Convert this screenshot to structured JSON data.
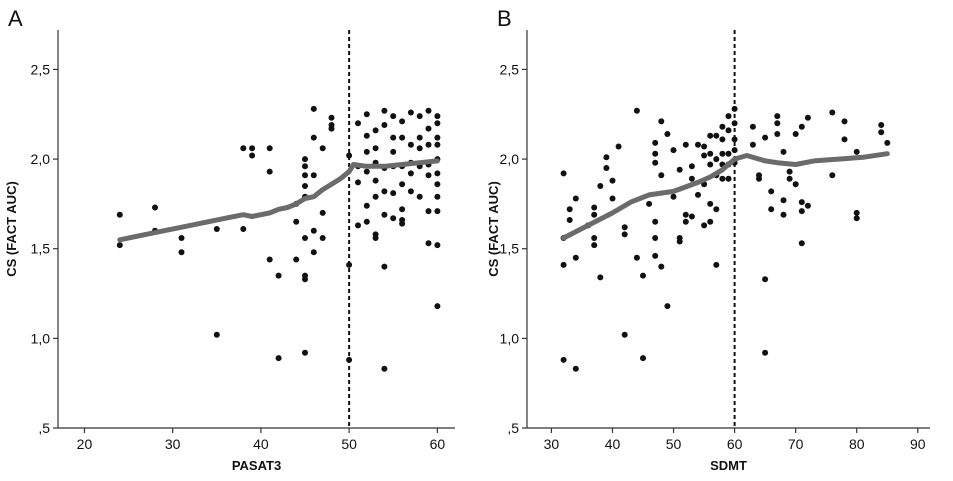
{
  "chart_data": [
    {
      "type": "scatter",
      "panel": "A",
      "xlabel": "PASAT3",
      "ylabel": "CS (FACT AUC)",
      "xlim": [
        17,
        62
      ],
      "ylim": [
        0.5,
        2.72
      ],
      "xticks": [
        20,
        30,
        40,
        50,
        60
      ],
      "yticks": [
        0.5,
        1.0,
        1.5,
        2.0,
        2.5
      ],
      "yticklabels": [
        ",5",
        "1,0",
        "1,5",
        "2,0",
        "2,5"
      ],
      "cutoff_x": 50,
      "points": [
        [
          24,
          1.69
        ],
        [
          24,
          1.52
        ],
        [
          28,
          1.73
        ],
        [
          28,
          1.6
        ],
        [
          31,
          1.56
        ],
        [
          31,
          1.48
        ],
        [
          35,
          1.61
        ],
        [
          35,
          1.02
        ],
        [
          38,
          2.06
        ],
        [
          38,
          1.61
        ],
        [
          39,
          2.06
        ],
        [
          39,
          2.02
        ],
        [
          41,
          2.06
        ],
        [
          41,
          1.93
        ],
        [
          41,
          1.44
        ],
        [
          42,
          1.35
        ],
        [
          42,
          0.89
        ],
        [
          44,
          1.75
        ],
        [
          44,
          1.65
        ],
        [
          44,
          1.44
        ],
        [
          45,
          2.0
        ],
        [
          45,
          1.96
        ],
        [
          45,
          1.91
        ],
        [
          45,
          1.85
        ],
        [
          45,
          1.79
        ],
        [
          45,
          1.56
        ],
        [
          45,
          1.35
        ],
        [
          45,
          1.33
        ],
        [
          45,
          0.92
        ],
        [
          46,
          2.28
        ],
        [
          46,
          2.12
        ],
        [
          46,
          1.91
        ],
        [
          46,
          1.6
        ],
        [
          46,
          1.48
        ],
        [
          47,
          2.06
        ],
        [
          47,
          1.7
        ],
        [
          47,
          1.56
        ],
        [
          48,
          2.23
        ],
        [
          48,
          2.19
        ],
        [
          48,
          2.17
        ],
        [
          50,
          1.41
        ],
        [
          50,
          0.88
        ],
        [
          50,
          2.02
        ],
        [
          51,
          2.2
        ],
        [
          51,
          1.96
        ],
        [
          51,
          1.87
        ],
        [
          51,
          1.63
        ],
        [
          52,
          2.25
        ],
        [
          52,
          2.13
        ],
        [
          52,
          2.04
        ],
        [
          52,
          1.93
        ],
        [
          52,
          1.74
        ],
        [
          52,
          1.65
        ],
        [
          53,
          2.16
        ],
        [
          53,
          2.06
        ],
        [
          53,
          1.98
        ],
        [
          53,
          1.88
        ],
        [
          53,
          1.79
        ],
        [
          53,
          1.58
        ],
        [
          53,
          1.56
        ],
        [
          54,
          2.27
        ],
        [
          54,
          2.19
        ],
        [
          54,
          1.95
        ],
        [
          54,
          1.82
        ],
        [
          54,
          1.69
        ],
        [
          54,
          1.4
        ],
        [
          54,
          0.83
        ],
        [
          55,
          2.24
        ],
        [
          55,
          2.12
        ],
        [
          55,
          2.04
        ],
        [
          55,
          1.96
        ],
        [
          55,
          1.81
        ],
        [
          55,
          1.67
        ],
        [
          56,
          2.21
        ],
        [
          56,
          2.12
        ],
        [
          56,
          1.96
        ],
        [
          56,
          1.86
        ],
        [
          56,
          1.72
        ],
        [
          56,
          1.66
        ],
        [
          56,
          1.64
        ],
        [
          57,
          2.26
        ],
        [
          57,
          2.08
        ],
        [
          57,
          1.98
        ],
        [
          57,
          1.92
        ],
        [
          57,
          1.82
        ],
        [
          58,
          2.24
        ],
        [
          58,
          2.12
        ],
        [
          58,
          2.06
        ],
        [
          58,
          1.96
        ],
        [
          58,
          1.79
        ],
        [
          59,
          2.27
        ],
        [
          59,
          2.17
        ],
        [
          59,
          2.08
        ],
        [
          59,
          1.97
        ],
        [
          59,
          1.91
        ],
        [
          59,
          1.71
        ],
        [
          59,
          1.53
        ],
        [
          60,
          2.24
        ],
        [
          60,
          2.2
        ],
        [
          60,
          2.12
        ],
        [
          60,
          2.08
        ],
        [
          60,
          2.0
        ],
        [
          60,
          1.92
        ],
        [
          60,
          1.86
        ],
        [
          60,
          1.79
        ],
        [
          60,
          1.71
        ],
        [
          60,
          1.52
        ],
        [
          60,
          1.18
        ]
      ],
      "trend": [
        [
          24,
          1.55
        ],
        [
          28,
          1.59
        ],
        [
          32,
          1.63
        ],
        [
          36,
          1.67
        ],
        [
          38,
          1.69
        ],
        [
          39,
          1.68
        ],
        [
          41,
          1.7
        ],
        [
          42,
          1.72
        ],
        [
          43,
          1.73
        ],
        [
          44,
          1.75
        ],
        [
          45,
          1.78
        ],
        [
          46,
          1.79
        ],
        [
          47,
          1.83
        ],
        [
          48,
          1.86
        ],
        [
          49,
          1.89
        ],
        [
          50,
          1.93
        ],
        [
          50.5,
          1.97
        ],
        [
          52,
          1.96
        ],
        [
          54,
          1.96
        ],
        [
          56,
          1.97
        ],
        [
          58,
          1.98
        ],
        [
          60,
          1.99
        ]
      ]
    },
    {
      "type": "scatter",
      "panel": "B",
      "xlabel": "SDMT",
      "ylabel": "CS (FACT AUC)",
      "xlim": [
        26,
        92
      ],
      "ylim": [
        0.5,
        2.72
      ],
      "xticks": [
        30,
        40,
        50,
        60,
        70,
        80,
        90
      ],
      "yticks": [
        0.5,
        1.0,
        1.5,
        2.0,
        2.5
      ],
      "yticklabels": [
        ",5",
        "1,0",
        "1,5",
        "2,0",
        "2,5"
      ],
      "cutoff_x": 60,
      "points": [
        [
          32,
          1.92
        ],
        [
          32,
          1.56
        ],
        [
          32,
          1.41
        ],
        [
          32,
          0.88
        ],
        [
          33,
          1.72
        ],
        [
          33,
          1.66
        ],
        [
          34,
          1.78
        ],
        [
          34,
          1.45
        ],
        [
          34,
          0.83
        ],
        [
          36,
          1.63
        ],
        [
          37,
          1.73
        ],
        [
          37,
          1.69
        ],
        [
          37,
          1.56
        ],
        [
          37,
          1.52
        ],
        [
          38,
          1.85
        ],
        [
          38,
          1.34
        ],
        [
          39,
          2.01
        ],
        [
          39,
          1.95
        ],
        [
          40,
          1.88
        ],
        [
          40,
          1.78
        ],
        [
          41,
          2.07
        ],
        [
          42,
          1.62
        ],
        [
          42,
          1.58
        ],
        [
          42,
          1.02
        ],
        [
          44,
          2.27
        ],
        [
          44,
          1.45
        ],
        [
          45,
          1.35
        ],
        [
          45,
          0.89
        ],
        [
          46,
          1.75
        ],
        [
          47,
          2.09
        ],
        [
          47,
          2.03
        ],
        [
          47,
          1.98
        ],
        [
          47,
          1.65
        ],
        [
          47,
          1.56
        ],
        [
          47,
          1.46
        ],
        [
          48,
          2.21
        ],
        [
          48,
          1.91
        ],
        [
          48,
          1.4
        ],
        [
          49,
          2.14
        ],
        [
          49,
          1.18
        ],
        [
          50,
          2.05
        ],
        [
          50,
          1.79
        ],
        [
          51,
          1.94
        ],
        [
          51,
          1.56
        ],
        [
          51,
          1.54
        ],
        [
          52,
          2.08
        ],
        [
          52,
          1.69
        ],
        [
          52,
          1.65
        ],
        [
          53,
          1.96
        ],
        [
          53,
          1.89
        ],
        [
          53,
          1.68
        ],
        [
          54,
          2.08
        ],
        [
          54,
          1.8
        ],
        [
          55,
          2.07
        ],
        [
          55,
          2.02
        ],
        [
          55,
          1.86
        ],
        [
          55,
          1.63
        ],
        [
          56,
          2.13
        ],
        [
          56,
          2.03
        ],
        [
          56,
          1.97
        ],
        [
          56,
          1.75
        ],
        [
          56,
          1.65
        ],
        [
          57,
          2.13
        ],
        [
          57,
          2.0
        ],
        [
          57,
          1.91
        ],
        [
          57,
          1.72
        ],
        [
          57,
          1.41
        ],
        [
          58,
          2.18
        ],
        [
          58,
          2.11
        ],
        [
          58,
          2.03
        ],
        [
          58,
          1.97
        ],
        [
          58,
          1.89
        ],
        [
          59,
          2.24
        ],
        [
          59,
          2.16
        ],
        [
          59,
          2.03
        ],
        [
          59,
          1.97
        ],
        [
          59,
          1.89
        ],
        [
          60,
          2.28
        ],
        [
          60,
          2.2
        ],
        [
          60,
          2.11
        ],
        [
          60,
          2.05
        ],
        [
          60,
          1.98
        ],
        [
          63,
          2.18
        ],
        [
          63,
          2.08
        ],
        [
          64,
          1.91
        ],
        [
          64,
          1.89
        ],
        [
          65,
          2.12
        ],
        [
          65,
          1.33
        ],
        [
          65,
          0.92
        ],
        [
          66,
          1.82
        ],
        [
          66,
          1.72
        ],
        [
          67,
          2.24
        ],
        [
          67,
          2.2
        ],
        [
          67,
          2.14
        ],
        [
          68,
          2.04
        ],
        [
          68,
          1.77
        ],
        [
          68,
          1.69
        ],
        [
          69,
          1.93
        ],
        [
          69,
          1.89
        ],
        [
          70,
          2.14
        ],
        [
          70,
          1.86
        ],
        [
          71,
          2.18
        ],
        [
          71,
          1.76
        ],
        [
          71,
          1.71
        ],
        [
          71,
          1.53
        ],
        [
          72,
          2.23
        ],
        [
          72,
          1.74
        ],
        [
          76,
          2.26
        ],
        [
          76,
          1.91
        ],
        [
          78,
          2.21
        ],
        [
          78,
          2.11
        ],
        [
          80,
          2.04
        ],
        [
          80,
          1.7
        ],
        [
          80,
          1.67
        ],
        [
          84,
          2.19
        ],
        [
          84,
          2.15
        ],
        [
          85,
          2.09
        ]
      ],
      "trend": [
        [
          32,
          1.56
        ],
        [
          36,
          1.63
        ],
        [
          40,
          1.7
        ],
        [
          43,
          1.76
        ],
        [
          46,
          1.8
        ],
        [
          48,
          1.81
        ],
        [
          50,
          1.82
        ],
        [
          54,
          1.87
        ],
        [
          56,
          1.9
        ],
        [
          58,
          1.94
        ],
        [
          60,
          2.0
        ],
        [
          62,
          2.02
        ],
        [
          65,
          1.99
        ],
        [
          67,
          1.98
        ],
        [
          70,
          1.97
        ],
        [
          73,
          1.99
        ],
        [
          77,
          2.0
        ],
        [
          81,
          2.01
        ],
        [
          85,
          2.03
        ]
      ]
    }
  ]
}
